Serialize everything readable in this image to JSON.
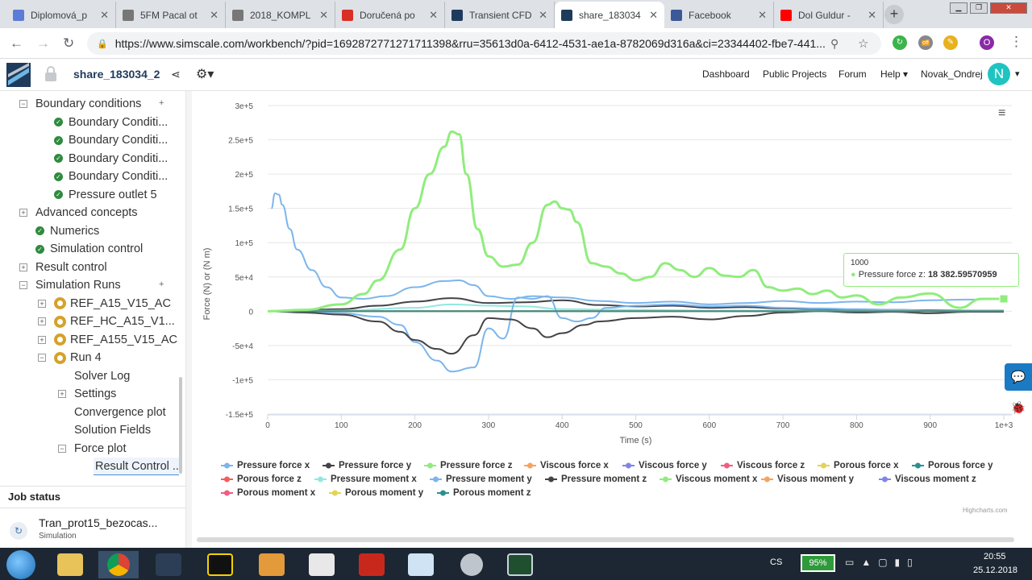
{
  "browser": {
    "tabs": [
      {
        "title": "Diplomová_p",
        "icon_color": "#5b7bd6"
      },
      {
        "title": "5FM Pacal ot",
        "icon_color": "#777777"
      },
      {
        "title": "2018_KOMPL",
        "icon_color": "#777777"
      },
      {
        "title": "Doručená po",
        "icon_color": "#d93025"
      },
      {
        "title": "Transient CFD",
        "icon_color": "#1f3b5c"
      },
      {
        "title": "share_183034",
        "icon_color": "#1f3b5c"
      },
      {
        "title": "Facebook",
        "icon_color": "#3b5998"
      },
      {
        "title": "Dol Guldur -",
        "icon_color": "#ff0000"
      }
    ],
    "active_tab_index": 5,
    "url": "https://www.simscale.com/workbench/?pid=1692872771271711398&rru=35613d0a-6412-4531-ae1a-8782069d316a&ci=23344402-fbe7-441...",
    "profile_initial": "O",
    "extension_badge": "off"
  },
  "app": {
    "project_title": "share_183034_2",
    "nav": [
      "Dashboard",
      "Public Projects",
      "Forum",
      "Help"
    ],
    "user": "Novak_Ondrej",
    "avatar_initial": "N"
  },
  "tree": [
    {
      "label": "Boundary conditions",
      "level": 0,
      "toggle": "−",
      "plus": true
    },
    {
      "label": "Boundary Conditi...",
      "level": 1,
      "status": "ok"
    },
    {
      "label": "Boundary Conditi...",
      "level": 1,
      "status": "ok"
    },
    {
      "label": "Boundary Conditi...",
      "level": 1,
      "status": "ok"
    },
    {
      "label": "Boundary Conditi...",
      "level": 1,
      "status": "ok"
    },
    {
      "label": "Pressure outlet 5",
      "level": 1,
      "status": "ok"
    },
    {
      "label": "Advanced concepts",
      "level": 0,
      "toggle": "+"
    },
    {
      "label": "Numerics",
      "level": 0,
      "status": "ok"
    },
    {
      "label": "Simulation control",
      "level": 0,
      "status": "ok"
    },
    {
      "label": "Result control",
      "level": 0,
      "toggle": "+"
    },
    {
      "label": "Simulation Runs",
      "level": 0,
      "toggle": "−",
      "plus": true
    },
    {
      "label": "REF_A15_V15_AC",
      "level": 1,
      "toggle": "+",
      "status": "gear"
    },
    {
      "label": "REF_HC_A15_V1...",
      "level": 1,
      "toggle": "+",
      "status": "gear"
    },
    {
      "label": "REF_A155_V15_AC",
      "level": 1,
      "toggle": "+",
      "status": "gear"
    },
    {
      "label": "Run 4",
      "level": 1,
      "toggle": "−",
      "status": "gear"
    },
    {
      "label": "Solver Log",
      "level": 2
    },
    {
      "label": "Settings",
      "level": 2,
      "toggle": "+"
    },
    {
      "label": "Convergence plot",
      "level": 2
    },
    {
      "label": "Solution Fields",
      "level": 2
    },
    {
      "label": "Force plot",
      "level": 2,
      "toggle": "−"
    },
    {
      "label": "Result Control ...",
      "level": 3,
      "selected": true
    }
  ],
  "job_status": {
    "heading": "Job status",
    "job_name": "Tran_prot15_bezocas...",
    "job_type": "Simulation"
  },
  "chart_data": {
    "type": "line",
    "xlabel": "Time (s)",
    "ylabel": "Force (N) or (N m)",
    "xlim": [
      0,
      1000
    ],
    "ylim": [
      -150000,
      300000
    ],
    "x_ticks": [
      "0",
      "100",
      "200",
      "300",
      "400",
      "500",
      "600",
      "700",
      "800",
      "900",
      "1e+3"
    ],
    "y_ticks": [
      "3e+5",
      "2.5e+5",
      "2e+5",
      "1.5e+5",
      "1e+5",
      "5e+4",
      "0",
      "-5e+4",
      "-1e+5",
      "-1.5e+5"
    ],
    "grid": "horizontal",
    "legend_position": "bottom",
    "credits": "Highcharts.com",
    "tooltip": {
      "x": "1000",
      "series": "Pressure force z",
      "value": "18 382.59570959"
    },
    "series": [
      {
        "name": "Pressure force x",
        "color": "#7cb5ec",
        "marker": "circle",
        "x": [
          5,
          10,
          15,
          20,
          30,
          40,
          60,
          80,
          100,
          130,
          160,
          200,
          240,
          260,
          280,
          300,
          330,
          360,
          400,
          450,
          500,
          550,
          600,
          650,
          700,
          750,
          800,
          850,
          900,
          950,
          1000
        ],
        "y": [
          150000,
          172000,
          170000,
          155000,
          120000,
          90000,
          60000,
          35000,
          20000,
          18000,
          22000,
          35000,
          44000,
          45000,
          38000,
          22000,
          18000,
          22000,
          20000,
          15000,
          12000,
          14000,
          10000,
          12000,
          15000,
          12000,
          14000,
          13000,
          16000,
          17000,
          18000
        ]
      },
      {
        "name": "Pressure force y",
        "color": "#434348",
        "marker": "cross",
        "x": [
          0,
          50,
          100,
          150,
          200,
          250,
          300,
          350,
          400,
          450,
          500,
          550,
          600,
          650,
          700,
          750,
          800,
          850,
          900,
          950,
          1000
        ],
        "y": [
          0,
          2000,
          3000,
          8000,
          14000,
          19000,
          12000,
          13000,
          16000,
          9000,
          7000,
          8000,
          5000,
          6000,
          4000,
          3000,
          2500,
          2000,
          1500,
          1000,
          800
        ]
      },
      {
        "name": "Pressure force z",
        "color": "#90ed7d",
        "marker": "square",
        "x": [
          0,
          50,
          100,
          130,
          150,
          180,
          200,
          220,
          240,
          250,
          260,
          270,
          285,
          300,
          320,
          340,
          360,
          380,
          390,
          400,
          410,
          420,
          440,
          460,
          480,
          500,
          520,
          540,
          560,
          580,
          600,
          620,
          640,
          660,
          680,
          700,
          720,
          740,
          760,
          780,
          800,
          830,
          860,
          900,
          940,
          970,
          1000
        ],
        "y": [
          0,
          2000,
          10000,
          25000,
          45000,
          90000,
          150000,
          200000,
          240000,
          262000,
          258000,
          200000,
          120000,
          80000,
          65000,
          68000,
          100000,
          155000,
          160000,
          150000,
          148000,
          130000,
          70000,
          65000,
          55000,
          45000,
          50000,
          70000,
          60000,
          50000,
          63000,
          52000,
          50000,
          60000,
          35000,
          30000,
          33000,
          25000,
          30000,
          20000,
          23000,
          10000,
          20000,
          26000,
          5000,
          18000,
          18000
        ]
      },
      {
        "name": "Viscous force x",
        "color": "#f7a35c",
        "marker": "triangle",
        "x": [
          0,
          1000
        ],
        "y": [
          0,
          0
        ]
      },
      {
        "name": "Viscous force y",
        "color": "#8085e9",
        "marker": "triangle-down",
        "x": [
          0,
          1000
        ],
        "y": [
          0,
          0
        ]
      },
      {
        "name": "Viscous force z",
        "color": "#f15c80",
        "marker": "circle",
        "x": [
          0,
          1000
        ],
        "y": [
          0,
          0
        ]
      },
      {
        "name": "Porous force x",
        "color": "#e4d354",
        "marker": "circle",
        "x": [
          0,
          1000
        ],
        "y": [
          0,
          0
        ]
      },
      {
        "name": "Porous force y",
        "color": "#2b908f",
        "marker": "square",
        "x": [
          0,
          1000
        ],
        "y": [
          0,
          0
        ]
      },
      {
        "name": "Porous force z",
        "color": "#f45b5b",
        "marker": "triangle",
        "x": [
          0,
          1000
        ],
        "y": [
          0,
          0
        ]
      },
      {
        "name": "Pressure moment x",
        "color": "#91e8e1",
        "marker": "cross",
        "x": [
          0,
          100,
          200,
          250,
          300,
          350,
          400,
          500,
          600,
          700,
          800,
          900,
          1000
        ],
        "y": [
          0,
          1000,
          5000,
          10000,
          8000,
          7000,
          3000,
          2000,
          1000,
          1000,
          500,
          500,
          500
        ]
      },
      {
        "name": "Pressure moment y",
        "color": "#7cb5ec",
        "marker": "circle",
        "x": [
          0,
          50,
          100,
          150,
          180,
          200,
          230,
          250,
          280,
          300,
          320,
          340,
          360,
          380,
          400,
          420,
          440,
          460,
          500,
          550,
          600,
          650,
          700,
          750,
          800,
          850,
          900,
          950,
          1000
        ],
        "y": [
          0,
          -1000,
          -3000,
          -8000,
          -20000,
          -45000,
          -72000,
          -88000,
          -82000,
          -25000,
          -40000,
          20000,
          18000,
          22000,
          -10000,
          -15000,
          -10000,
          5000,
          8000,
          10000,
          7000,
          8000,
          5000,
          4000,
          3000,
          2000,
          1000,
          800,
          500
        ]
      },
      {
        "name": "Pressure moment z",
        "color": "#434348",
        "marker": "cross",
        "x": [
          0,
          50,
          100,
          150,
          180,
          200,
          230,
          250,
          280,
          300,
          330,
          360,
          380,
          400,
          430,
          450,
          500,
          550,
          600,
          650,
          700,
          750,
          800,
          850,
          900,
          950,
          1000
        ],
        "y": [
          0,
          -2000,
          -5000,
          -15000,
          -30000,
          -42000,
          -55000,
          -62000,
          -35000,
          -10000,
          -12000,
          -25000,
          -38000,
          -32000,
          -20000,
          -15000,
          -10000,
          -8000,
          -12000,
          -7000,
          -2000,
          0,
          -2000,
          -1000,
          -3000,
          -1000,
          -1000
        ]
      },
      {
        "name": "Viscous moment x",
        "color": "#90ed7d",
        "marker": "square",
        "x": [
          0,
          1000
        ],
        "y": [
          0,
          0
        ]
      },
      {
        "name": "Visous moment y",
        "color": "#f7a35c",
        "marker": "triangle",
        "x": [
          0,
          1000
        ],
        "y": [
          0,
          0
        ]
      },
      {
        "name": "Viscous moment z",
        "color": "#8085e9",
        "marker": "triangle-down",
        "x": [
          0,
          1000
        ],
        "y": [
          0,
          0
        ]
      },
      {
        "name": "Porous moment x",
        "color": "#f15c80",
        "marker": "circle",
        "x": [
          0,
          1000
        ],
        "y": [
          0,
          0
        ]
      },
      {
        "name": "Porous moment y",
        "color": "#e4d354",
        "marker": "circle",
        "x": [
          0,
          1000
        ],
        "y": [
          0,
          0
        ]
      },
      {
        "name": "Porous moment z",
        "color": "#2b908f",
        "marker": "square",
        "x": [
          0,
          1000
        ],
        "y": [
          0,
          0
        ]
      }
    ]
  },
  "taskbar": {
    "battery": "95%",
    "language": "CS",
    "time": "20:55",
    "date": "25.12.2018"
  }
}
